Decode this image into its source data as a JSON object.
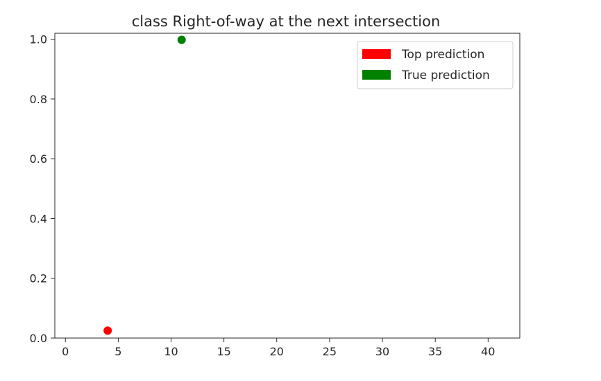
{
  "chart_data": {
    "type": "scatter",
    "title": "class Right-of-way at the next intersection",
    "xlabel": "",
    "ylabel": "",
    "xlim": [
      -1,
      43
    ],
    "ylim": [
      0,
      1.02
    ],
    "xticks": [
      0,
      5,
      10,
      15,
      20,
      25,
      30,
      35,
      40
    ],
    "yticks": [
      0.0,
      0.2,
      0.4,
      0.6,
      0.8,
      1.0
    ],
    "xtick_labels": [
      "0",
      "5",
      "10",
      "15",
      "20",
      "25",
      "30",
      "35",
      "40"
    ],
    "ytick_labels": [
      "0.0",
      "0.2",
      "0.4",
      "0.6",
      "0.8",
      "1.0"
    ],
    "grid": false,
    "legend": {
      "placement": "top-right",
      "entries": [
        {
          "label": "Top prediction",
          "color": "#ff0000"
        },
        {
          "label": "True prediction",
          "color": "#008000"
        }
      ]
    },
    "points": [
      {
        "x": 4,
        "y": 0.025,
        "color": "#ff0000"
      },
      {
        "x": 11,
        "y": 0.998,
        "color": "#008000"
      }
    ]
  }
}
